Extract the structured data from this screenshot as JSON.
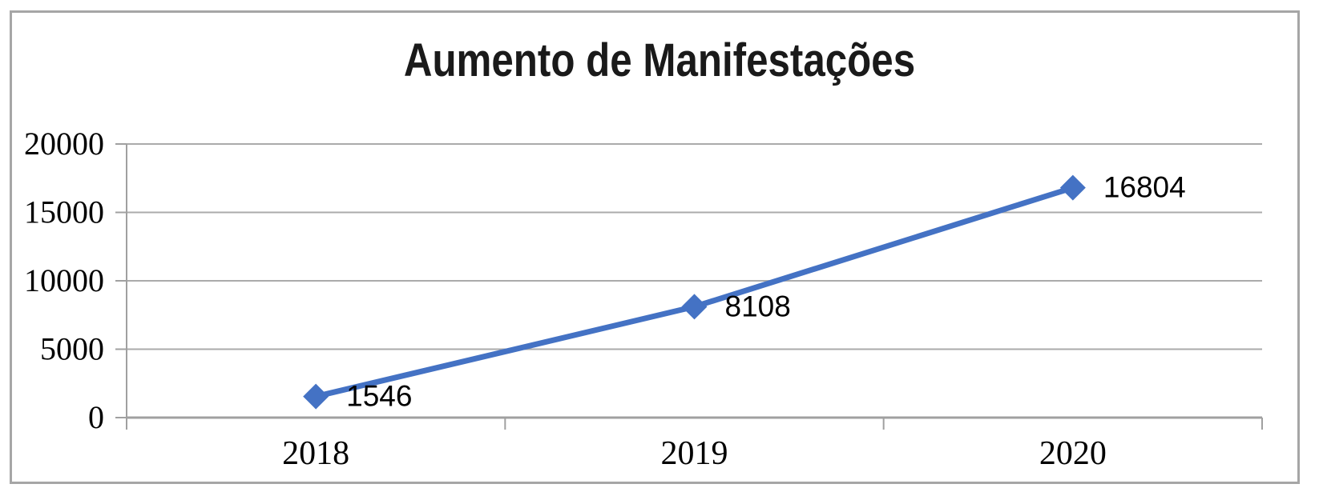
{
  "chart": {
    "title": "Aumento de Manifestações"
  },
  "chart_data": {
    "type": "line",
    "title": "Aumento de Manifestações",
    "categories": [
      "2018",
      "2019",
      "2020"
    ],
    "values": [
      1546,
      8108,
      16804
    ],
    "data_labels": [
      "1546",
      "8108",
      "16804"
    ],
    "xlabel": "",
    "ylabel": "",
    "ylim": [
      0,
      20000
    ],
    "yticks": [
      0,
      5000,
      10000,
      15000,
      20000
    ],
    "ytick_labels": [
      "0",
      "5000",
      "10000",
      "15000",
      "20000"
    ],
    "grid": true,
    "legend": false,
    "marker": "diamond",
    "colors": {
      "line": "#4472C4",
      "marker": "#4472C4",
      "gridline": "#ababab",
      "axis": "#a0a0a0",
      "border": "#a6a6a6",
      "title_text": "#1a1a1a",
      "tick_text": "#000000",
      "data_label_text": "#000000",
      "background": "#ffffff"
    }
  }
}
